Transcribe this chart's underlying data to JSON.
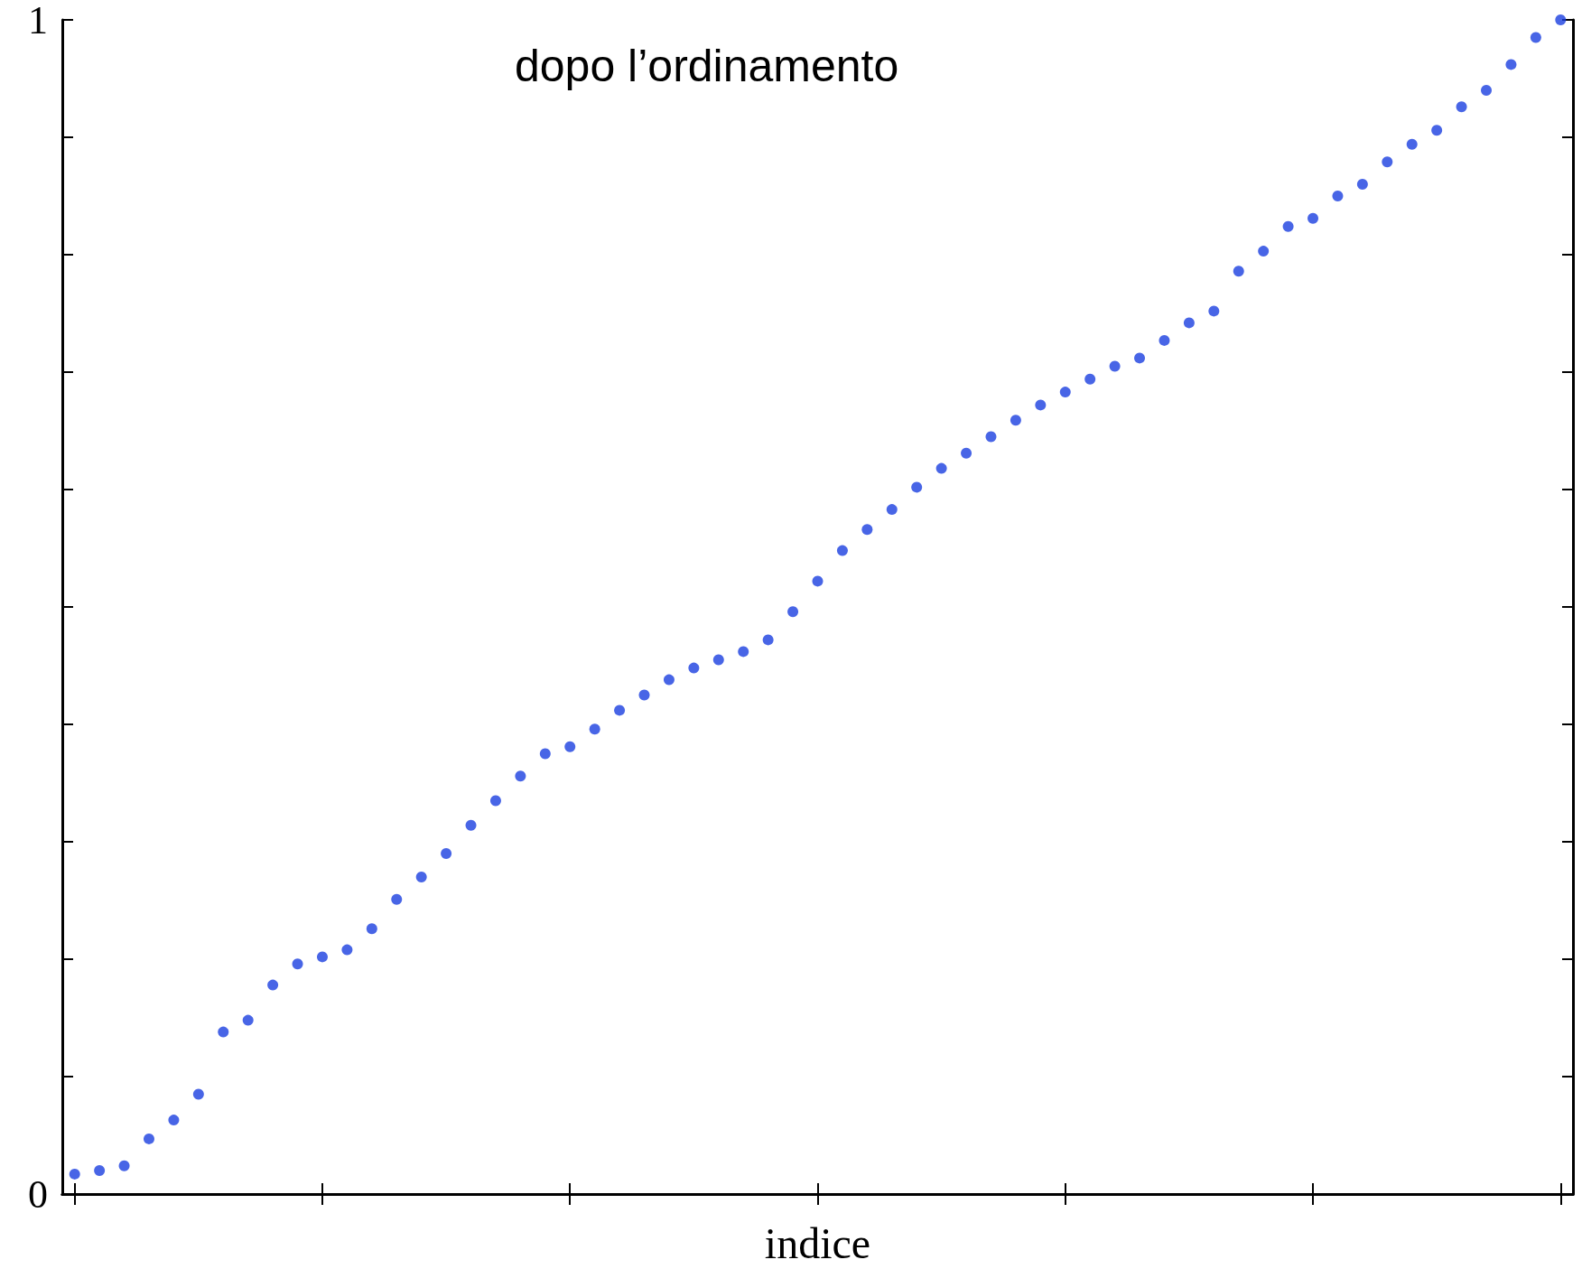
{
  "chart_data": {
    "type": "scatter",
    "xlabel": "indice",
    "annotations": [
      "dopo l’ordinamento"
    ],
    "categories": [
      null,
      null,
      null,
      null,
      null,
      null,
      null,
      null,
      null,
      null,
      null,
      null,
      null,
      null,
      null,
      null,
      null,
      null,
      null,
      null,
      null,
      null,
      null,
      null,
      null,
      null,
      null,
      null,
      null,
      null,
      null,
      null,
      null,
      null,
      null,
      null,
      null,
      null,
      null,
      null,
      null,
      null,
      null,
      null,
      null,
      null,
      null,
      null,
      null,
      null,
      null,
      null,
      null,
      null,
      null,
      null,
      null,
      null,
      null,
      null,
      null
    ],
    "values": [
      0.017,
      0.02,
      0.024,
      0.047,
      0.063,
      0.085,
      0.138,
      0.148,
      0.178,
      0.196,
      0.202,
      0.208,
      0.226,
      0.251,
      0.27,
      0.29,
      0.314,
      0.335,
      0.356,
      0.375,
      0.381,
      0.396,
      0.412,
      0.425,
      0.438,
      0.448,
      0.455,
      0.462,
      0.472,
      0.496,
      0.522,
      0.548,
      0.566,
      0.583,
      0.602,
      0.618,
      0.631,
      0.645,
      0.659,
      0.672,
      0.683,
      0.694,
      0.705,
      0.712,
      0.727,
      0.742,
      0.752,
      0.786,
      0.803,
      0.824,
      0.831,
      0.85,
      0.86,
      0.879,
      0.894,
      0.906,
      0.926,
      0.94,
      0.962,
      0.985,
      1.0
    ],
    "color": "#1a3fe0",
    "marker": "circle",
    "tick_labels": "y",
    "ylim": [
      0,
      1
    ],
    "yticks": [
      0,
      {
        "value": 0.1,
        "label": null
      },
      {
        "value": 0.2,
        "label": null
      },
      {
        "value": 0.3,
        "label": null
      },
      {
        "value": 0.4,
        "label": null
      },
      {
        "value": 0.5,
        "label": null
      },
      {
        "value": 0.6,
        "label": null
      },
      {
        "value": 0.7,
        "label": null
      },
      {
        "value": 0.8,
        "label": null
      },
      {
        "value": 0.9,
        "label": null
      },
      1
    ]
  }
}
